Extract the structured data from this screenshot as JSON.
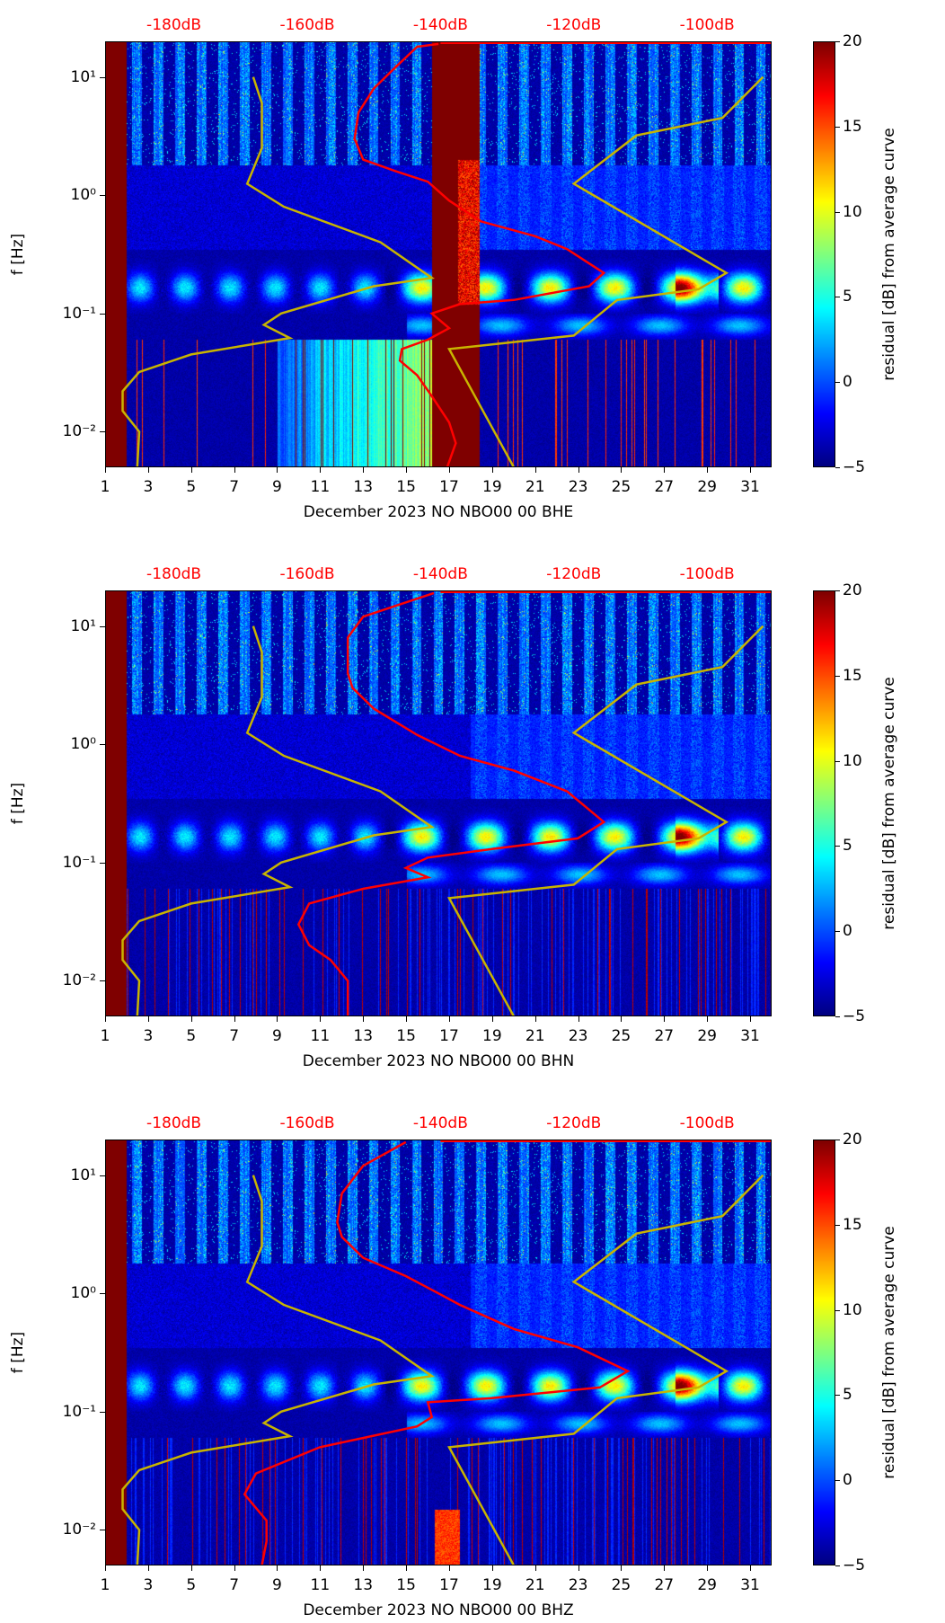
{
  "chart_data": [
    {
      "type": "heatmap",
      "xlabel": "December 2023 NO NBO00 00 BHE",
      "ylabel": "f [Hz]",
      "colorbar_label": "residual [dB] from average curve",
      "red_curve_dB": [
        [
          -140.3,
          19
        ],
        [
          -143.5,
          18
        ],
        [
          -146.8,
          12
        ],
        [
          -150.0,
          8
        ],
        [
          -152.3,
          5
        ],
        [
          -152.9,
          3
        ],
        [
          -151.6,
          2
        ],
        [
          -146.8,
          1.6
        ],
        [
          -141.9,
          1.3
        ],
        [
          -138.7,
          0.9
        ],
        [
          -133.9,
          0.6
        ],
        [
          -125.8,
          0.45
        ],
        [
          -121.0,
          0.35
        ],
        [
          -115.5,
          0.22
        ],
        [
          -117.7,
          0.17
        ],
        [
          -129.0,
          0.13
        ],
        [
          -137.1,
          0.12
        ],
        [
          -141.3,
          0.1
        ],
        [
          -138.7,
          0.075
        ],
        [
          -141.9,
          0.06
        ],
        [
          -145.8,
          0.05
        ],
        [
          -146.1,
          0.04
        ],
        [
          -143.5,
          0.03
        ],
        [
          -141.3,
          0.02
        ],
        [
          -138.7,
          0.012
        ],
        [
          -137.7,
          0.008
        ],
        [
          -139.0,
          0.005
        ]
      ],
      "gap_days": [
        16.2,
        18.4
      ]
    },
    {
      "type": "heatmap",
      "xlabel": "December 2023 NO NBO00 00 BHN",
      "ylabel": "f [Hz]",
      "colorbar_label": "residual [dB] from average curve",
      "red_curve_dB": [
        [
          -141.0,
          19
        ],
        [
          -151.6,
          12
        ],
        [
          -153.9,
          8
        ],
        [
          -153.9,
          4
        ],
        [
          -153.2,
          3
        ],
        [
          -150.0,
          2
        ],
        [
          -143.5,
          1.2
        ],
        [
          -137.1,
          0.8
        ],
        [
          -129.0,
          0.6
        ],
        [
          -121.0,
          0.4
        ],
        [
          -115.5,
          0.22
        ],
        [
          -119.4,
          0.16
        ],
        [
          -132.3,
          0.13
        ],
        [
          -141.9,
          0.11
        ],
        [
          -145.2,
          0.09
        ],
        [
          -141.9,
          0.075
        ],
        [
          -151.6,
          0.06
        ],
        [
          -159.7,
          0.045
        ],
        [
          -161.3,
          0.03
        ],
        [
          -159.7,
          0.02
        ],
        [
          -156.5,
          0.015
        ],
        [
          -153.9,
          0.01
        ],
        [
          -153.9,
          0.005
        ]
      ],
      "gap_days": []
    },
    {
      "type": "heatmap",
      "xlabel": "December 2023 NO NBO00 00 BHZ",
      "ylabel": "f [Hz]",
      "colorbar_label": "residual [dB] from average curve",
      "red_curve_dB": [
        [
          -145.2,
          19
        ],
        [
          -151.6,
          12
        ],
        [
          -154.8,
          7
        ],
        [
          -155.5,
          4
        ],
        [
          -154.8,
          3
        ],
        [
          -151.6,
          2
        ],
        [
          -145.2,
          1.4
        ],
        [
          -140.3,
          1
        ],
        [
          -137.1,
          0.8
        ],
        [
          -129.0,
          0.5
        ],
        [
          -119.4,
          0.35
        ],
        [
          -111.9,
          0.22
        ],
        [
          -116.1,
          0.16
        ],
        [
          -132.3,
          0.13
        ],
        [
          -141.9,
          0.12
        ],
        [
          -141.3,
          0.09
        ],
        [
          -143.5,
          0.075
        ],
        [
          -158.1,
          0.05
        ],
        [
          -167.7,
          0.03
        ],
        [
          -169.4,
          0.02
        ],
        [
          -166.1,
          0.012
        ],
        [
          -166.1,
          0.008
        ],
        [
          -166.8,
          0.005
        ]
      ],
      "gap_days": []
    }
  ],
  "shared": {
    "xlim": [
      1,
      32
    ],
    "ylim_hz": [
      0.005,
      20
    ],
    "yscale": "log",
    "xticks": [
      "1",
      "3",
      "5",
      "7",
      "9",
      "11",
      "13",
      "15",
      "17",
      "19",
      "21",
      "23",
      "25",
      "27",
      "29",
      "31"
    ],
    "yticks": [
      {
        "value": 10,
        "label": "10¹"
      },
      {
        "value": 1,
        "label": "10⁰"
      },
      {
        "value": 0.1,
        "label": "10⁻¹"
      },
      {
        "value": 0.01,
        "label": "10⁻²"
      }
    ],
    "top_axis_dB_ticks": [
      "-180dB",
      "-160dB",
      "-140dB",
      "-120dB",
      "-100dB"
    ],
    "top_axis_dB_values": [
      -180,
      -160,
      -140,
      -120,
      -100
    ],
    "dB_per_day": 3.226,
    "dB_at_day_4_2": -180,
    "colorbar_ticks": [
      "20",
      "15",
      "10",
      "5",
      "0",
      "−5"
    ],
    "colorbar_range": [
      -5,
      20
    ],
    "colormap": "jet",
    "low_noise_model_dB": [
      [
        -168.1,
        10
      ],
      [
        -166.8,
        6
      ],
      [
        -166.8,
        2.5
      ],
      [
        -169.0,
        1.25
      ],
      [
        -163.5,
        0.8
      ],
      [
        -149.0,
        0.4
      ],
      [
        -141.3,
        0.2
      ],
      [
        -150.0,
        0.17
      ],
      [
        -163.9,
        0.1
      ],
      [
        -166.5,
        0.08
      ],
      [
        -162.6,
        0.062
      ],
      [
        -177.4,
        0.045
      ],
      [
        -185.2,
        0.032
      ],
      [
        -187.7,
        0.022
      ],
      [
        -187.7,
        0.015
      ],
      [
        -185.2,
        0.01
      ],
      [
        -185.5,
        0.005
      ]
    ],
    "high_noise_model_dB": [
      [
        -91.6,
        10
      ],
      [
        -97.7,
        4.5
      ],
      [
        -110.6,
        3.2
      ],
      [
        -120.0,
        1.25
      ],
      [
        -97.1,
        0.22
      ],
      [
        -101.3,
        0.16
      ],
      [
        -113.5,
        0.13
      ],
      [
        -120.0,
        0.065
      ],
      [
        -138.7,
        0.05
      ],
      [
        -129.0,
        0.005
      ]
    ],
    "colors": {
      "psd_curve": "#ff0000",
      "noise_models": "#c8b400",
      "db_labels": "#ff0000"
    }
  }
}
